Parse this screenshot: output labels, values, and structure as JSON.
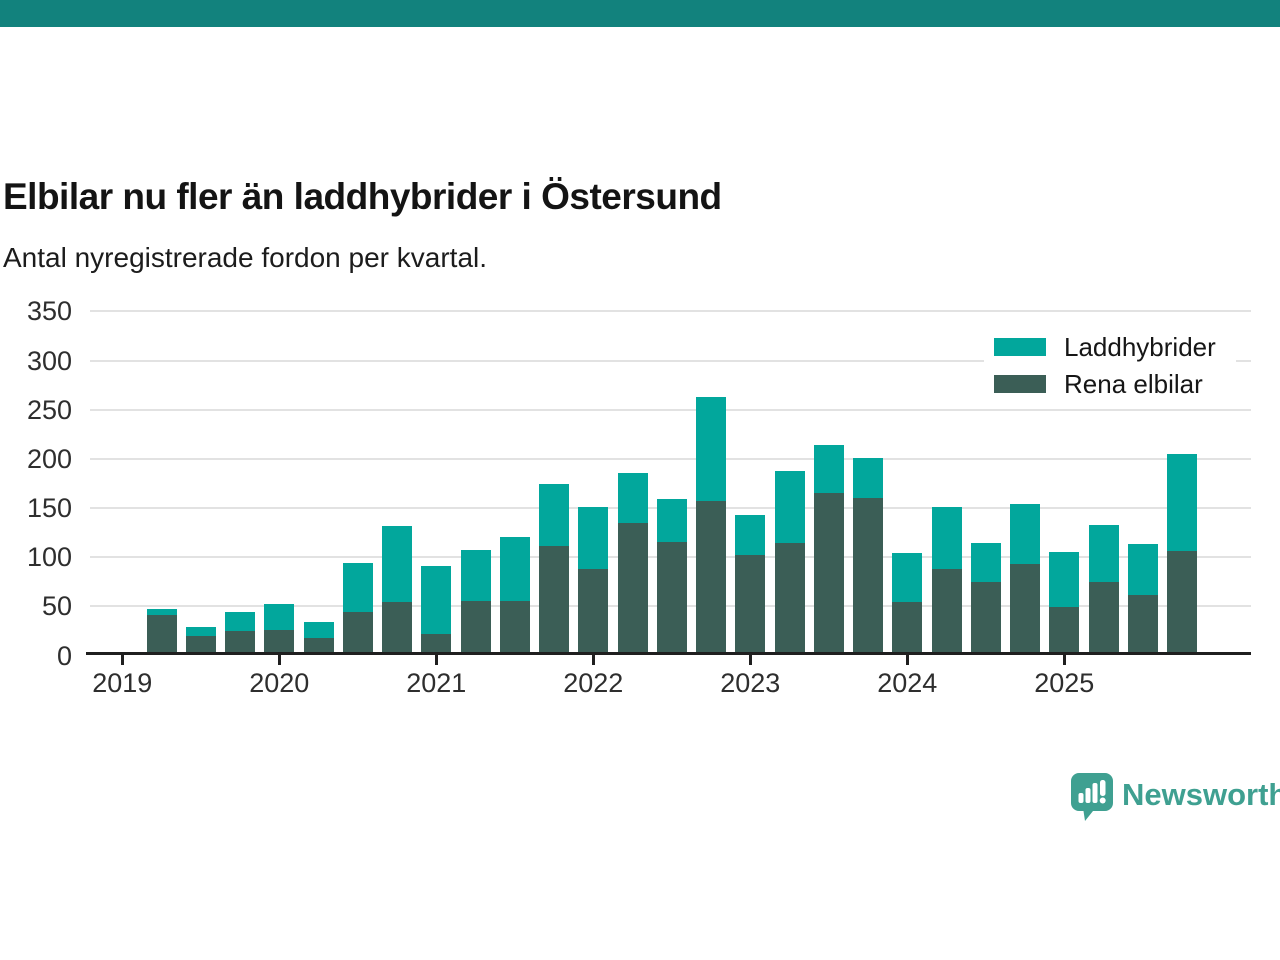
{
  "header": {
    "title": "Elbilar nu fler än laddhybrider i Östersund",
    "subtitle": "Antal nyregistrerade fordon per kvartal."
  },
  "brand": {
    "name": "Newsworthy",
    "color": "#3fa091"
  },
  "accent_bar_color": "#12827d",
  "chart_data": {
    "type": "bar",
    "stacked": true,
    "title": "Elbilar nu fler än laddhybrider i Östersund",
    "subtitle": "Antal nyregistrerade fordon per kvartal.",
    "ylabel": "",
    "xlabel": "",
    "ylim": [
      0,
      350
    ],
    "yticks": [
      0,
      50,
      100,
      150,
      200,
      250,
      300,
      350
    ],
    "grid": true,
    "legend_position": "top-right",
    "x_year_labels": [
      "2019",
      "2020",
      "2021",
      "2022",
      "2023",
      "2024",
      "2025"
    ],
    "start_offset_quarters": 1,
    "categories": [
      "2019 Q2",
      "2019 Q3",
      "2019 Q4",
      "2020 Q1",
      "2020 Q2",
      "2020 Q3",
      "2020 Q4",
      "2021 Q1",
      "2021 Q2",
      "2021 Q3",
      "2021 Q4",
      "2022 Q1",
      "2022 Q2",
      "2022 Q3",
      "2022 Q4",
      "2023 Q1",
      "2023 Q2",
      "2023 Q3",
      "2023 Q4",
      "2024 Q1",
      "2024 Q2",
      "2024 Q3",
      "2024 Q4",
      "2025 Q1",
      "2025 Q2",
      "2025 Q3",
      "2025 Q4"
    ],
    "series": [
      {
        "name": "Laddhybrider",
        "color": "#02a79c",
        "values": [
          6,
          9,
          20,
          27,
          17,
          50,
          77,
          70,
          52,
          65,
          63,
          64,
          51,
          44,
          105,
          40,
          73,
          49,
          40,
          50,
          63,
          40,
          61,
          56,
          58,
          52,
          98
        ]
      },
      {
        "name": "Rena elbilar",
        "color": "#3b5e56",
        "values": [
          40,
          18,
          23,
          24,
          16,
          43,
          53,
          20,
          54,
          54,
          110,
          86,
          133,
          114,
          156,
          101,
          113,
          164,
          159,
          53,
          86,
          73,
          92,
          48,
          73,
          60,
          105
        ]
      }
    ]
  }
}
